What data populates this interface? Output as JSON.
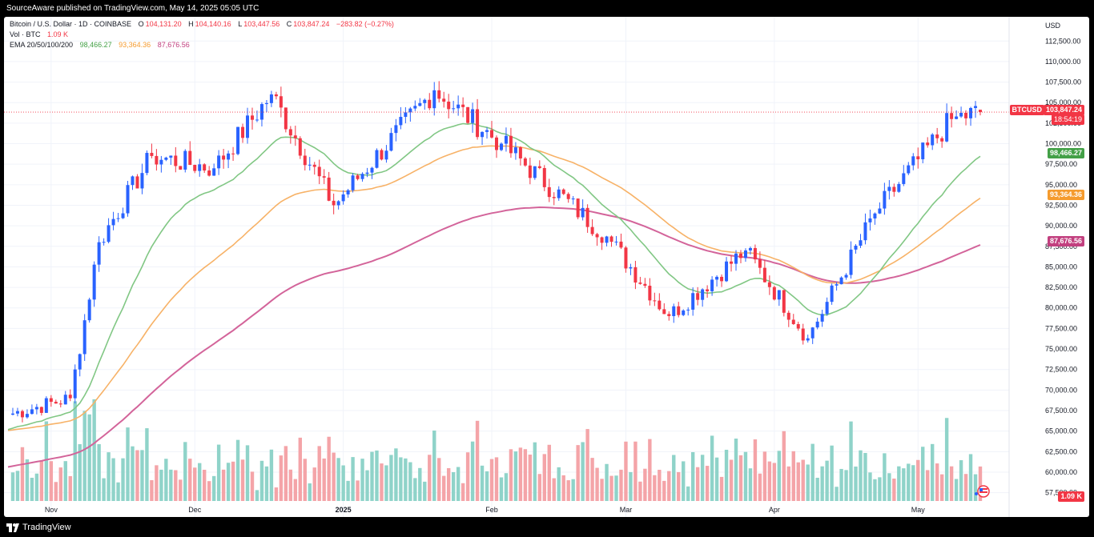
{
  "header": {
    "publisher_line": "SourceAware published on TradingView.com, May 14, 2025 05:05 UTC"
  },
  "legend": {
    "symbol": "Bitcoin / U.S. Dollar · 1D · COINBASE",
    "o_label": "O",
    "o_value": "104,131.20",
    "h_label": "H",
    "h_value": "104,140.16",
    "l_label": "L",
    "l_value": "103,447.56",
    "c_label": "C",
    "c_value": "103,847.24",
    "change": "−283.82 (−0.27%)",
    "vol_label": "Vol · BTC",
    "vol_value": "1.09 K",
    "ema_label": "EMA 20/50/100/200",
    "ema20_value": "98,466.27",
    "ema50_value": "93,364.36",
    "ema100_value": "87,676.56"
  },
  "price_axis": {
    "currency": "USD",
    "ticks": [
      "112,500.00",
      "110,000.00",
      "107,500.00",
      "105,000.00",
      "102,500.00",
      "100,000.00",
      "97,500.00",
      "95,000.00",
      "92,500.00",
      "90,000.00",
      "87,500.00",
      "85,000.00",
      "82,500.00",
      "80,000.00",
      "77,500.00",
      "75,000.00",
      "72,500.00",
      "70,000.00",
      "67,500.00",
      "65,000.00",
      "62,500.00",
      "60,000.00",
      "57,500.00"
    ]
  },
  "time_axis": {
    "labels": [
      "Nov",
      "Dec",
      "2025",
      "Feb",
      "Mar",
      "Apr",
      "May"
    ]
  },
  "tags": {
    "symbol_tag": "BTCUSD",
    "last_price": "103,847.24",
    "countdown": "18:54:19",
    "ema20": "98,466.27",
    "ema50": "93,364.36",
    "ema100": "87,676.56",
    "volume": "1.09 K"
  },
  "footer": {
    "brand": "TradingView"
  },
  "colors": {
    "up": "#26a69a",
    "up_body": "#2962ff",
    "down": "#f23645",
    "ema20": "#81c784",
    "ema50": "#f7b267",
    "ema100": "#d3649a",
    "vol_up": "#8fd3c9",
    "vol_down": "#f4a4a8"
  },
  "chart_data": {
    "type": "candlestick",
    "title": "Bitcoin / U.S. Dollar · 1D · COINBASE",
    "x_range": [
      "2024-10-23",
      "2025-05-14"
    ],
    "ylim": [
      56000,
      113500
    ],
    "key_points": [
      {
        "date": "2024-10-23",
        "close": 67000
      },
      {
        "date": "2024-11-05",
        "close": 69000
      },
      {
        "date": "2024-11-11",
        "close": 88000
      },
      {
        "date": "2024-11-22",
        "close": 98500
      },
      {
        "date": "2024-12-05",
        "close": 97000
      },
      {
        "date": "2024-12-17",
        "close": 106000
      },
      {
        "date": "2024-12-30",
        "close": 92500
      },
      {
        "date": "2025-01-20",
        "close": 106500
      },
      {
        "date": "2025-02-03",
        "close": 100000
      },
      {
        "date": "2025-02-25",
        "close": 88700
      },
      {
        "date": "2025-03-10",
        "close": 79000
      },
      {
        "date": "2025-03-26",
        "close": 87000
      },
      {
        "date": "2025-04-08",
        "close": 76300
      },
      {
        "date": "2025-04-22",
        "close": 91500
      },
      {
        "date": "2025-05-08",
        "close": 103000
      },
      {
        "date": "2025-05-14",
        "close": 103847.24
      }
    ],
    "series": [
      {
        "name": "EMA 20",
        "last": 98466.27
      },
      {
        "name": "EMA 50",
        "last": 93364.36
      },
      {
        "name": "EMA 100",
        "last": 87676.56
      }
    ],
    "last": {
      "open": 104131.2,
      "high": 104140.16,
      "low": 103447.56,
      "close": 103847.24,
      "volume_btc_k": 1.09
    }
  }
}
